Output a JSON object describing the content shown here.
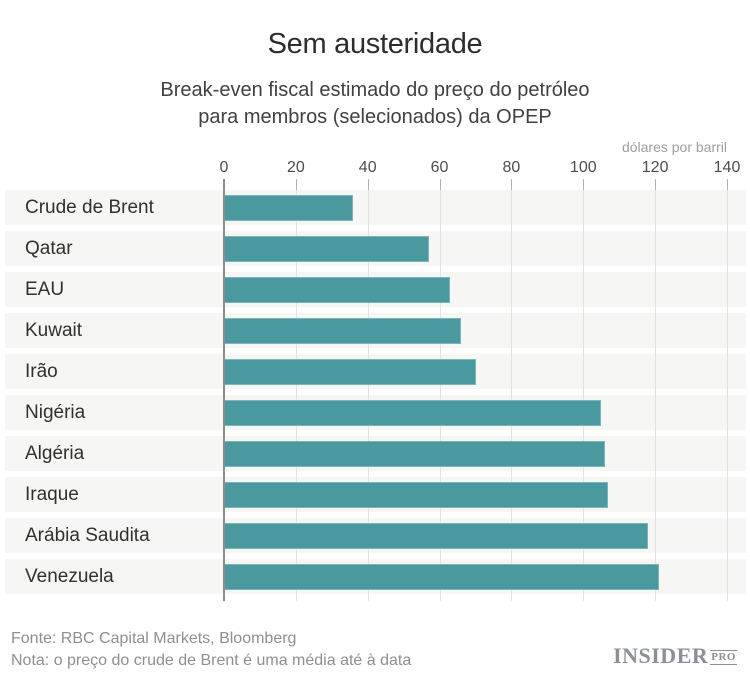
{
  "header": {
    "title": "Sem austeridade",
    "subtitle_line1": "Break-even fiscal estimado do preço do petróleo",
    "subtitle_line2": "para membros (selecionados) da OPEP"
  },
  "chart_data": {
    "type": "bar",
    "orientation": "horizontal",
    "title": "Sem austeridade",
    "subtitle": "Break-even fiscal estimado do preço do petróleo para membros (selecionados) da OPEP",
    "xlabel": "dólares por barril",
    "categories": [
      "Crude de Brent",
      "Qatar",
      "EAU",
      "Kuwait",
      "Irão",
      "Nigéria",
      "Algéria",
      "Iraque",
      "Arábia Saudita",
      "Venezuela"
    ],
    "values": [
      36,
      57,
      63,
      66,
      70,
      105,
      106,
      107,
      118,
      121
    ],
    "xticks": [
      0,
      20,
      40,
      60,
      80,
      100,
      120,
      140
    ],
    "xlim": [
      0,
      140
    ],
    "grid": true,
    "bar_color": "#4a999e",
    "row_band_color": "#f6f6f4",
    "gridline_color": "#e2e2e0",
    "zero_axis_color": "#8c8c8c"
  },
  "footer": {
    "source": "Fonte: RBC Capital Markets, Bloomberg",
    "note": "Nota: o preço do crude de Brent é uma média até à data",
    "logo_text": "INSIDER",
    "logo_suffix": "PRO"
  }
}
